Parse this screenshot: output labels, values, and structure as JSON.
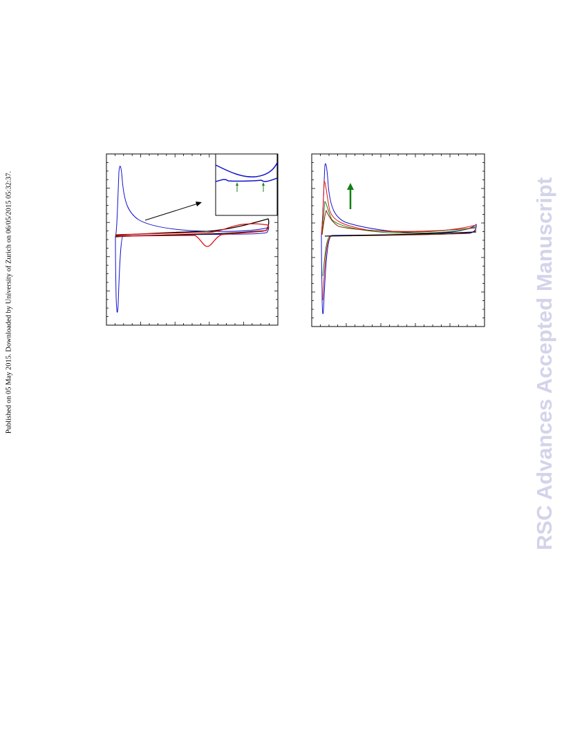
{
  "sidebar": {
    "text": "Published on 05 May 2015. Downloaded by University of Zurich on 06/05/2015 05:32:37."
  },
  "watermark": {
    "text": "RSC Advances Accepted Manuscript"
  }
}
